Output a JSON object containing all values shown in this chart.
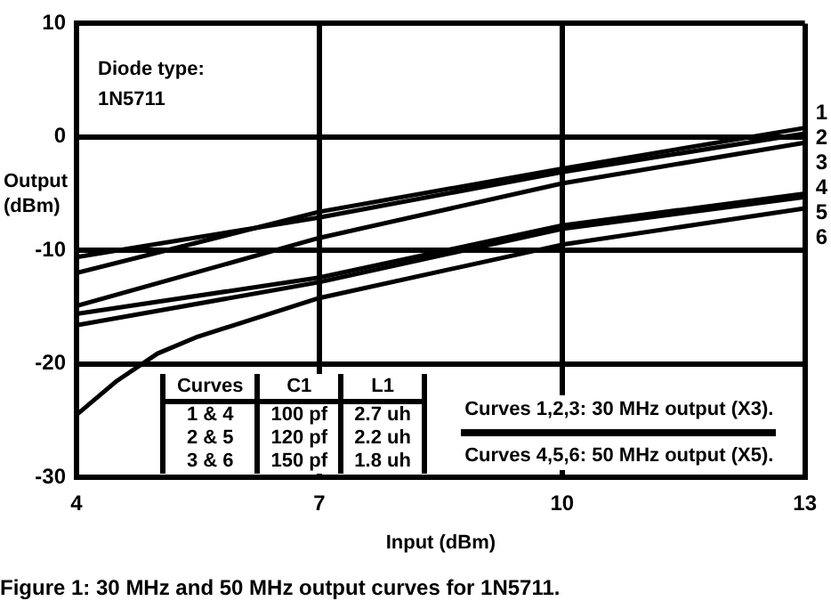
{
  "chart_data": {
    "type": "line",
    "title": "Figure 1: 30 MHz and 50 MHz output curves for 1N5711.",
    "xlabel": "Input (dBm)",
    "ylabel": "Output (dBm)",
    "xlim": [
      4,
      13
    ],
    "xticks": [
      4,
      7,
      10,
      13
    ],
    "ylim": [
      -30,
      10
    ],
    "yticks": [
      -30,
      -20,
      -10,
      0,
      10
    ],
    "grid": true,
    "legend": false,
    "marker": "none",
    "line_style": "solid",
    "annotations": [
      "Diode type:",
      "1N5711",
      "Curves",
      "C1",
      "L1",
      "1 & 4",
      "100 pf",
      "2.7 uh",
      "2 & 5",
      "120 pf",
      "2.2 uh",
      "3 & 6",
      "150 pf",
      "1.8 uh",
      "Curves 1,2,3: 30 MHz output (X3).",
      "Curves 4,5,6: 50 MHz output (X5)."
    ],
    "series": [
      {
        "name": "1",
        "color": "#000000",
        "x": [
          4,
          7,
          10,
          13
        ],
        "values": [
          -12.0,
          -6.6,
          -2.8,
          0.8
        ]
      },
      {
        "name": "2",
        "color": "#000000",
        "x": [
          4,
          7,
          10,
          13
        ],
        "values": [
          -10.6,
          -7.1,
          -3.1,
          0.3
        ]
      },
      {
        "name": "3",
        "color": "#000000",
        "x": [
          4,
          7,
          10,
          13
        ],
        "values": [
          -14.9,
          -8.9,
          -4.1,
          -0.5
        ]
      },
      {
        "name": "4",
        "color": "#000000",
        "x": [
          4,
          7,
          10,
          13
        ],
        "values": [
          -15.6,
          -12.4,
          -7.8,
          -5.0
        ]
      },
      {
        "name": "5",
        "color": "#000000",
        "x": [
          4,
          7,
          10,
          13
        ],
        "values": [
          -16.6,
          -12.8,
          -8.1,
          -5.3
        ]
      },
      {
        "name": "6",
        "color": "#000000",
        "x": [
          4,
          4.5,
          5,
          5.5,
          7,
          10,
          13
        ],
        "values": [
          -24.5,
          -21.5,
          -19.1,
          -17.6,
          -14.2,
          -9.5,
          -6.3
        ]
      }
    ]
  }
}
